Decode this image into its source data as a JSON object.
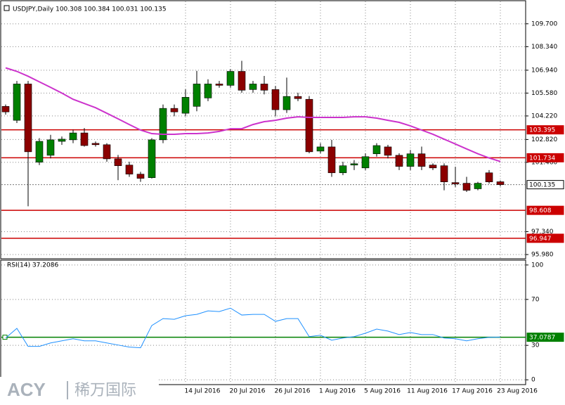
{
  "chart_data": [
    {
      "type": "candlestick",
      "title": "USDJPY,Daily 100.308 100.384 100.031 100.135",
      "categories": [
        null,
        null,
        null,
        null,
        null,
        null,
        null,
        null,
        null,
        null,
        null,
        null,
        null,
        null,
        null,
        null,
        "14 Jul 2016",
        null,
        null,
        null,
        "20 Jul 2016",
        null,
        null,
        null,
        "26 Jul 2016",
        null,
        null,
        null,
        "1 Aug 2016",
        null,
        null,
        null,
        "5 Aug 2016",
        null,
        null,
        null,
        "11 Aug 2016",
        null,
        null,
        null,
        "17 Aug 2016",
        null,
        null,
        null,
        "23 Aug 2016"
      ],
      "open": [
        104.79,
        103.96,
        106.12,
        101.47,
        101.88,
        102.71,
        102.8,
        103.21,
        102.59,
        102.51,
        101.67,
        101.3,
        100.76,
        100.55,
        102.8,
        104.67,
        104.38,
        104.79,
        105.29,
        106.12,
        106.04,
        106.87,
        105.79,
        106.12,
        105.79,
        104.59,
        105.38,
        105.21,
        102.13,
        102.38,
        100.84,
        101.3,
        101.13,
        101.97,
        102.38,
        101.88,
        101.22,
        101.97,
        101.3,
        101.26,
        100.26,
        100.22,
        99.89,
        100.84,
        100.308
      ],
      "high": [
        104.9,
        106.3,
        106.3,
        102.9,
        103.1,
        103.0,
        103.4,
        103.5,
        102.7,
        102.6,
        101.9,
        101.5,
        100.9,
        102.9,
        104.9,
        104.9,
        105.8,
        106.9,
        106.4,
        106.3,
        107.0,
        107.5,
        106.3,
        106.6,
        106.0,
        106.5,
        105.6,
        105.4,
        102.6,
        102.8,
        101.5,
        101.6,
        102.0,
        102.6,
        102.5,
        102.0,
        102.2,
        102.4,
        101.4,
        101.4,
        101.2,
        100.6,
        100.3,
        101.0,
        100.384
      ],
      "low": [
        104.3,
        103.8,
        98.85,
        101.3,
        101.7,
        102.5,
        102.6,
        102.4,
        102.4,
        101.5,
        100.4,
        100.6,
        100.3,
        100.5,
        102.6,
        104.2,
        104.2,
        104.5,
        105.1,
        105.9,
        105.9,
        105.6,
        105.6,
        105.5,
        104.2,
        104.4,
        105.1,
        102.0,
        102.0,
        100.6,
        100.7,
        101.0,
        101.0,
        101.8,
        101.7,
        101.0,
        101.0,
        101.0,
        101.0,
        99.8,
        100.0,
        99.7,
        99.8,
        100.2,
        100.031
      ],
      "close": [
        104.46,
        106.12,
        102.09,
        102.71,
        102.8,
        102.84,
        103.21,
        102.46,
        102.51,
        101.67,
        101.26,
        100.76,
        100.51,
        102.8,
        104.67,
        104.46,
        105.33,
        106.12,
        106.12,
        106.04,
        106.87,
        105.75,
        106.12,
        105.75,
        104.59,
        105.38,
        105.25,
        102.09,
        102.38,
        100.84,
        101.26,
        101.38,
        101.8,
        102.46,
        101.88,
        101.22,
        101.97,
        101.22,
        101.13,
        100.3,
        100.18,
        99.8,
        100.22,
        100.3,
        100.135
      ],
      "up_color": "#008000",
      "down_color": "#8b0000",
      "wick_color": "#000000",
      "ma": {
        "color": "#cc33cc",
        "values": [
          107.08,
          106.87,
          106.58,
          106.25,
          105.92,
          105.58,
          105.21,
          104.96,
          104.71,
          104.38,
          104.05,
          103.71,
          103.38,
          103.17,
          103.13,
          103.13,
          103.17,
          103.17,
          103.21,
          103.3,
          103.46,
          103.46,
          103.71,
          103.88,
          103.96,
          104.09,
          104.17,
          104.13,
          104.13,
          104.13,
          104.13,
          104.17,
          104.17,
          104.09,
          103.96,
          103.84,
          103.63,
          103.38,
          103.13,
          102.84,
          102.55,
          102.26,
          101.97,
          101.72,
          101.51
        ]
      },
      "levels": [
        103.395,
        101.734,
        98.608,
        96.947
      ],
      "level_color": "#cc0000",
      "last_price": 100.135,
      "ylim": [
        95.73,
        111.03
      ],
      "yticks": [
        {
          "value": 95.98,
          "label": "95.980"
        },
        {
          "value": 97.34,
          "label": "97.340"
        },
        {
          "value": 101.46,
          "label": "101.460"
        },
        {
          "value": 102.82,
          "label": "102.820"
        },
        {
          "value": 104.22,
          "label": "104.220"
        },
        {
          "value": 105.58,
          "label": "105.580"
        },
        {
          "value": 106.94,
          "label": "106.940"
        },
        {
          "value": 108.34,
          "label": "108.340"
        },
        {
          "value": 109.7,
          "label": "109.700"
        }
      ],
      "grid": true
    },
    {
      "type": "line",
      "title": "RSI(14) 37.2086",
      "values": [
        36.4,
        44.8,
        29.1,
        29.1,
        32.1,
        33.9,
        35.8,
        33.9,
        33.9,
        32.1,
        30.3,
        28.5,
        27.9,
        47.3,
        53.3,
        52.7,
        55.8,
        57.0,
        60.0,
        59.4,
        62.4,
        56.4,
        57.0,
        57.0,
        50.9,
        53.3,
        53.3,
        37.6,
        38.8,
        34.5,
        36.4,
        37.6,
        40.6,
        44.2,
        42.4,
        39.4,
        41.2,
        39.4,
        39.4,
        36.4,
        35.8,
        33.9,
        35.8,
        37.0,
        37.2
      ],
      "color": "#1e90ff",
      "level": 37.0787,
      "level_color": "#008000",
      "ylim": [
        -4.8,
        104.2
      ],
      "yticks": [
        0,
        30,
        70,
        100
      ],
      "grid": true
    }
  ],
  "watermark": {
    "brand": "ACY",
    "name": "稀万国际"
  }
}
